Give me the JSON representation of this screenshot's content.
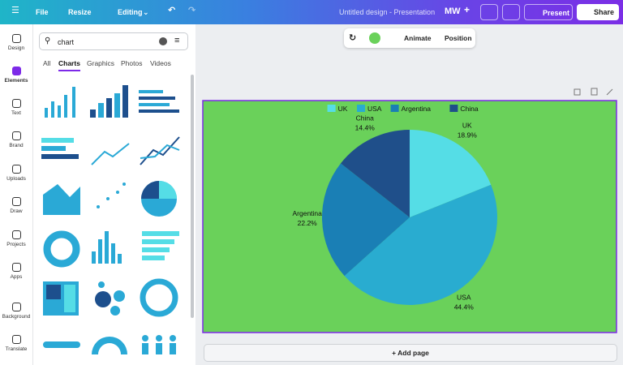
{
  "topbar": {
    "menu": "File",
    "resize": "Resize",
    "editing": "Editing",
    "doc_title": "Untitled design - Presentation",
    "avatar": "MW",
    "present": "Present",
    "share": "Share"
  },
  "sidebar": [
    "Design",
    "Elements",
    "Text",
    "Brand",
    "Uploads",
    "Draw",
    "Projects",
    "Apps",
    "Background",
    "Translate"
  ],
  "panel": {
    "search": "chart",
    "tabs": [
      "All",
      "Charts",
      "Graphics",
      "Photos",
      "Videos"
    ]
  },
  "toolbar": {
    "animate": "Animate",
    "position": "Position"
  },
  "chart_data": {
    "type": "pie",
    "categories": [
      "UK",
      "USA",
      "Argentina",
      "China"
    ],
    "values": [
      18.9,
      44.4,
      22.2,
      14.4
    ],
    "value_labels": [
      "18.9%",
      "44.4%",
      "22.2%",
      "14.4%"
    ],
    "colors": [
      "#55dde6",
      "#29acd0",
      "#1a7fb5",
      "#1f4f8a"
    ],
    "background": "#6ad15a",
    "legend": "top"
  },
  "add_page": "+ Add page"
}
